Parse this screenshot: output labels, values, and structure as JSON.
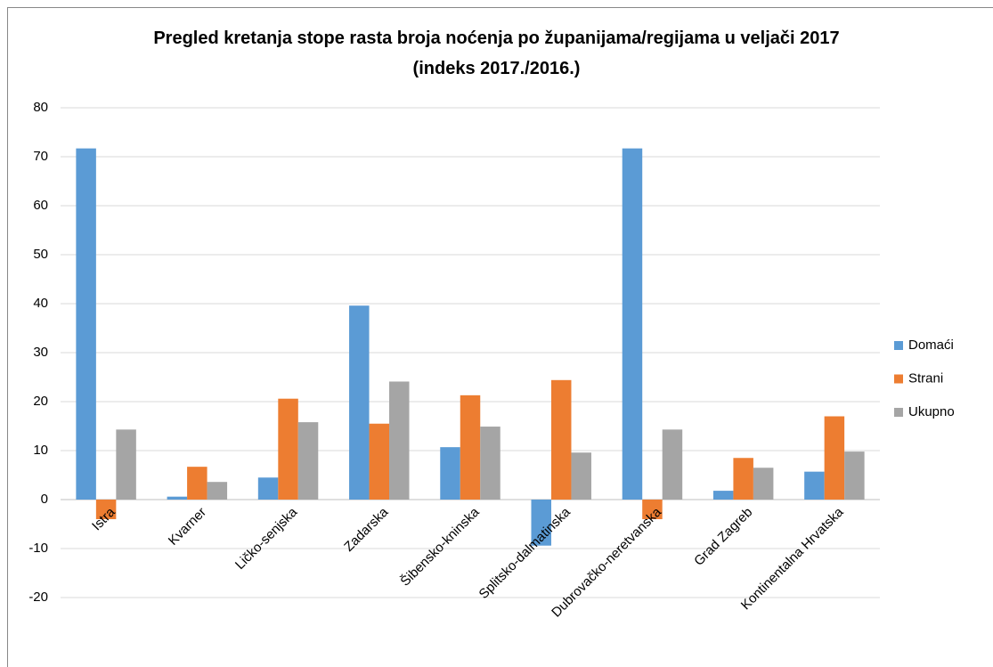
{
  "chart_data": {
    "type": "bar",
    "title": "Pregled kretanja stope rasta broja noćenja po županijama/regijama u veljači 2017 (indeks 2017./2016.)",
    "categories": [
      "Istra",
      "Kvarner",
      "Ličko-senjska",
      "Zadarska",
      "Šibensko-kninska",
      "Splitsko-dalmatinska",
      "Dubrovačko-neretvanska",
      "Grad Zagreb",
      "Kontinentalna Hrvatska"
    ],
    "series": [
      {
        "name": "Domaći",
        "color": "#5b9bd5",
        "values": [
          71.7,
          0.6,
          4.5,
          39.6,
          10.7,
          -9.4,
          71.7,
          1.8,
          5.7
        ]
      },
      {
        "name": "Strani",
        "color": "#ed7d31",
        "values": [
          -4,
          6.7,
          20.6,
          15.5,
          21.3,
          24.4,
          -4,
          8.5,
          17
        ]
      },
      {
        "name": "Ukupno",
        "color": "#a5a5a5",
        "values": [
          14.3,
          3.6,
          15.8,
          24.1,
          14.9,
          9.6,
          14.3,
          6.5,
          9.8
        ]
      }
    ],
    "ylim": [
      -20,
      80
    ],
    "yticks": [
      -20,
      -10,
      0,
      10,
      20,
      30,
      40,
      50,
      60,
      70,
      80
    ],
    "grid": true,
    "legend": "right"
  }
}
